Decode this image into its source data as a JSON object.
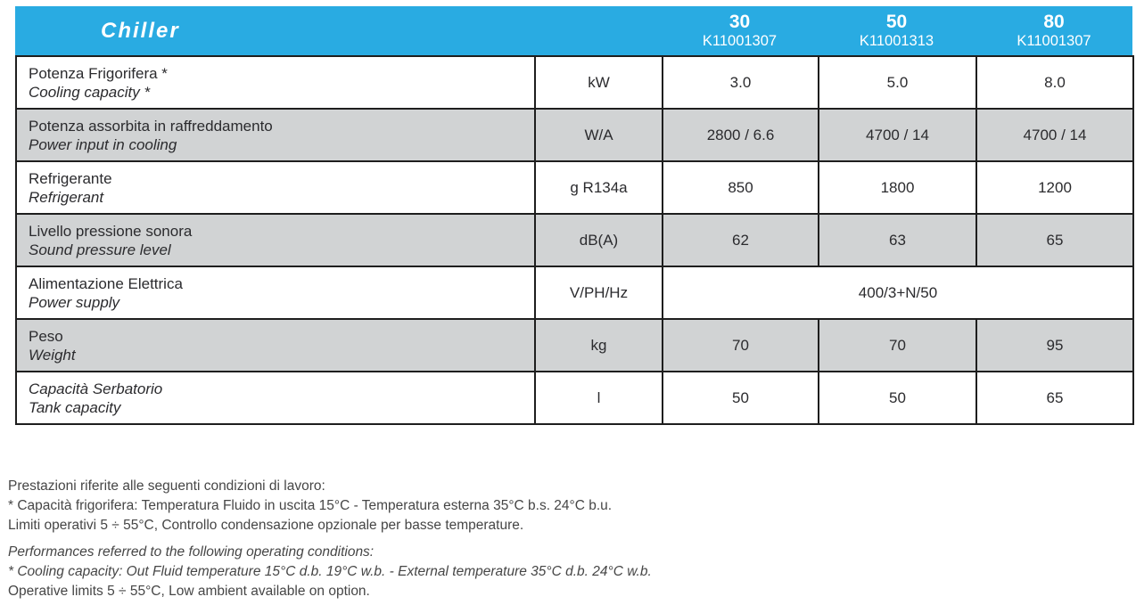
{
  "header": {
    "title": "Chiller",
    "models": [
      {
        "name": "30",
        "code": "K11001307"
      },
      {
        "name": "50",
        "code": "K11001313"
      },
      {
        "name": "80",
        "code": "K11001307"
      }
    ]
  },
  "table": {
    "rows": [
      {
        "label_it": "Potenza Frigorifera *",
        "label_en": "Cooling capacity *",
        "unit": "kW",
        "values": [
          "3.0",
          "5.0",
          "8.0"
        ],
        "shaded": false
      },
      {
        "label_it": "Potenza assorbita in raffreddamento",
        "label_en": "Power input in cooling",
        "unit": "W/A",
        "values": [
          "2800 / 6.6",
          "4700 / 14",
          "4700 / 14"
        ],
        "shaded": true
      },
      {
        "label_it": "Refrigerante",
        "label_en": "Refrigerant",
        "unit": "g R134a",
        "values": [
          "850",
          "1800",
          "1200"
        ],
        "shaded": false
      },
      {
        "label_it": "Livello pressione sonora",
        "label_en": "Sound pressure level",
        "unit": "dB(A)",
        "values": [
          "62",
          "63",
          "65"
        ],
        "shaded": true
      },
      {
        "label_it": "Alimentazione Elettrica",
        "label_en": "Power supply",
        "unit": "V/PH/Hz",
        "values": [
          "400/3+N/50"
        ],
        "merged": true,
        "shaded": false
      },
      {
        "label_it": "Peso",
        "label_en": "Weight",
        "unit": "kg",
        "values": [
          "70",
          "70",
          "95"
        ],
        "shaded": true
      },
      {
        "label_it": "Capacità Serbatorio",
        "label_en": "Tank capacity",
        "unit": "l",
        "values": [
          "50",
          "50",
          "65"
        ],
        "shaded": false,
        "italic_label": true
      }
    ]
  },
  "notes": {
    "italian": [
      "Prestazioni riferite alle seguenti condizioni di lavoro:",
      "* Capacità frigorifera: Temperatura Fluido in uscita 15°C - Temperatura esterna 35°C b.s. 24°C b.u.",
      "Limiti operativi 5 ÷ 55°C, Controllo condensazione opzionale per basse temperature."
    ],
    "english": [
      "Performances referred to the following operating conditions:",
      "* Cooling capacity: Out Fluid temperature 15°C d.b. 19°C w.b. - External temperature 35°C d.b. 24°C w.b.",
      "Operative limits 5 ÷ 55°C, Low ambient available on option."
    ]
  },
  "colors": {
    "header_blue": "#29ABE2",
    "row_shade": "#D1D3D4",
    "border": "#1E1E1E",
    "table_text": "#2B2B2E",
    "note_text": "#464646"
  }
}
